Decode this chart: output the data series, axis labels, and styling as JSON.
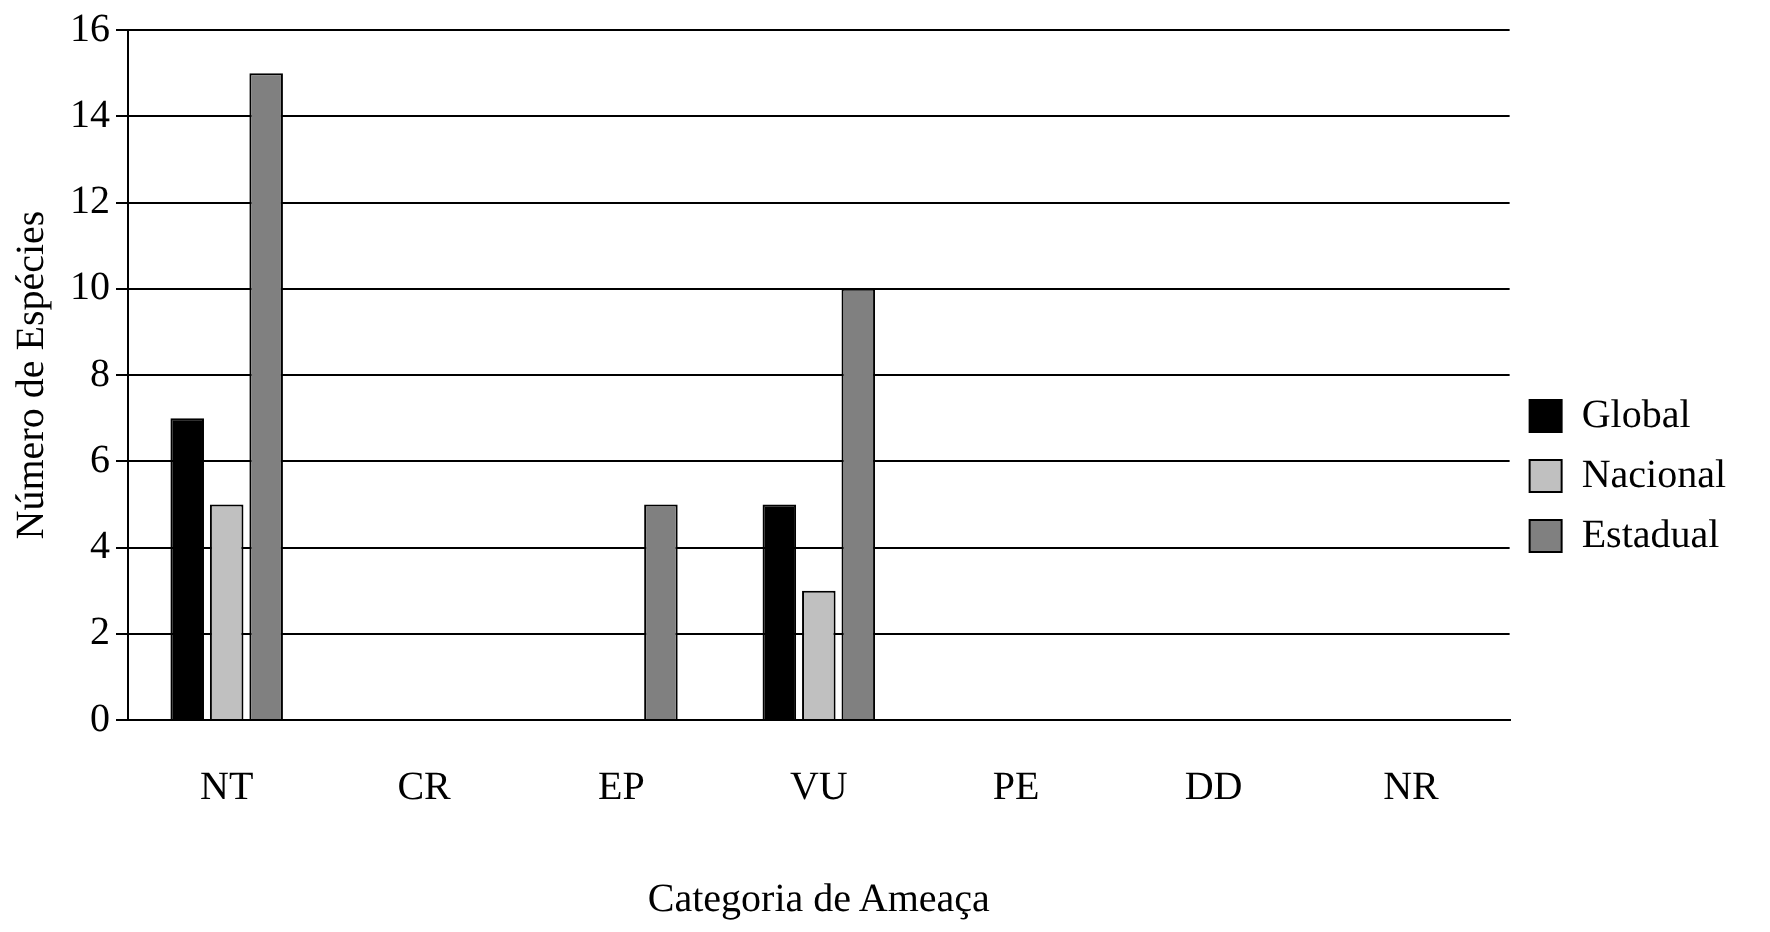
{
  "chart_data": {
    "type": "bar",
    "xlabel": "Categoria de Ameaça",
    "ylabel": "Número de Espécies",
    "categories": [
      "NT",
      "CR",
      "EP",
      "VU",
      "PE",
      "DD",
      "NR"
    ],
    "series": [
      {
        "name": "Global",
        "color": "#000000",
        "values": [
          7,
          0,
          0,
          5,
          0,
          0,
          0
        ]
      },
      {
        "name": "Nacional",
        "color": "#c0c0c0",
        "values": [
          5,
          0,
          0,
          3,
          0,
          0,
          0
        ]
      },
      {
        "name": "Estadual",
        "color": "#808080",
        "values": [
          15,
          0,
          5,
          10,
          0,
          0,
          0
        ]
      }
    ],
    "ylim": [
      0,
      16
    ],
    "yticks": [
      0,
      2,
      4,
      6,
      8,
      10,
      12,
      14,
      16
    ],
    "grid": "y",
    "legend": "right"
  }
}
